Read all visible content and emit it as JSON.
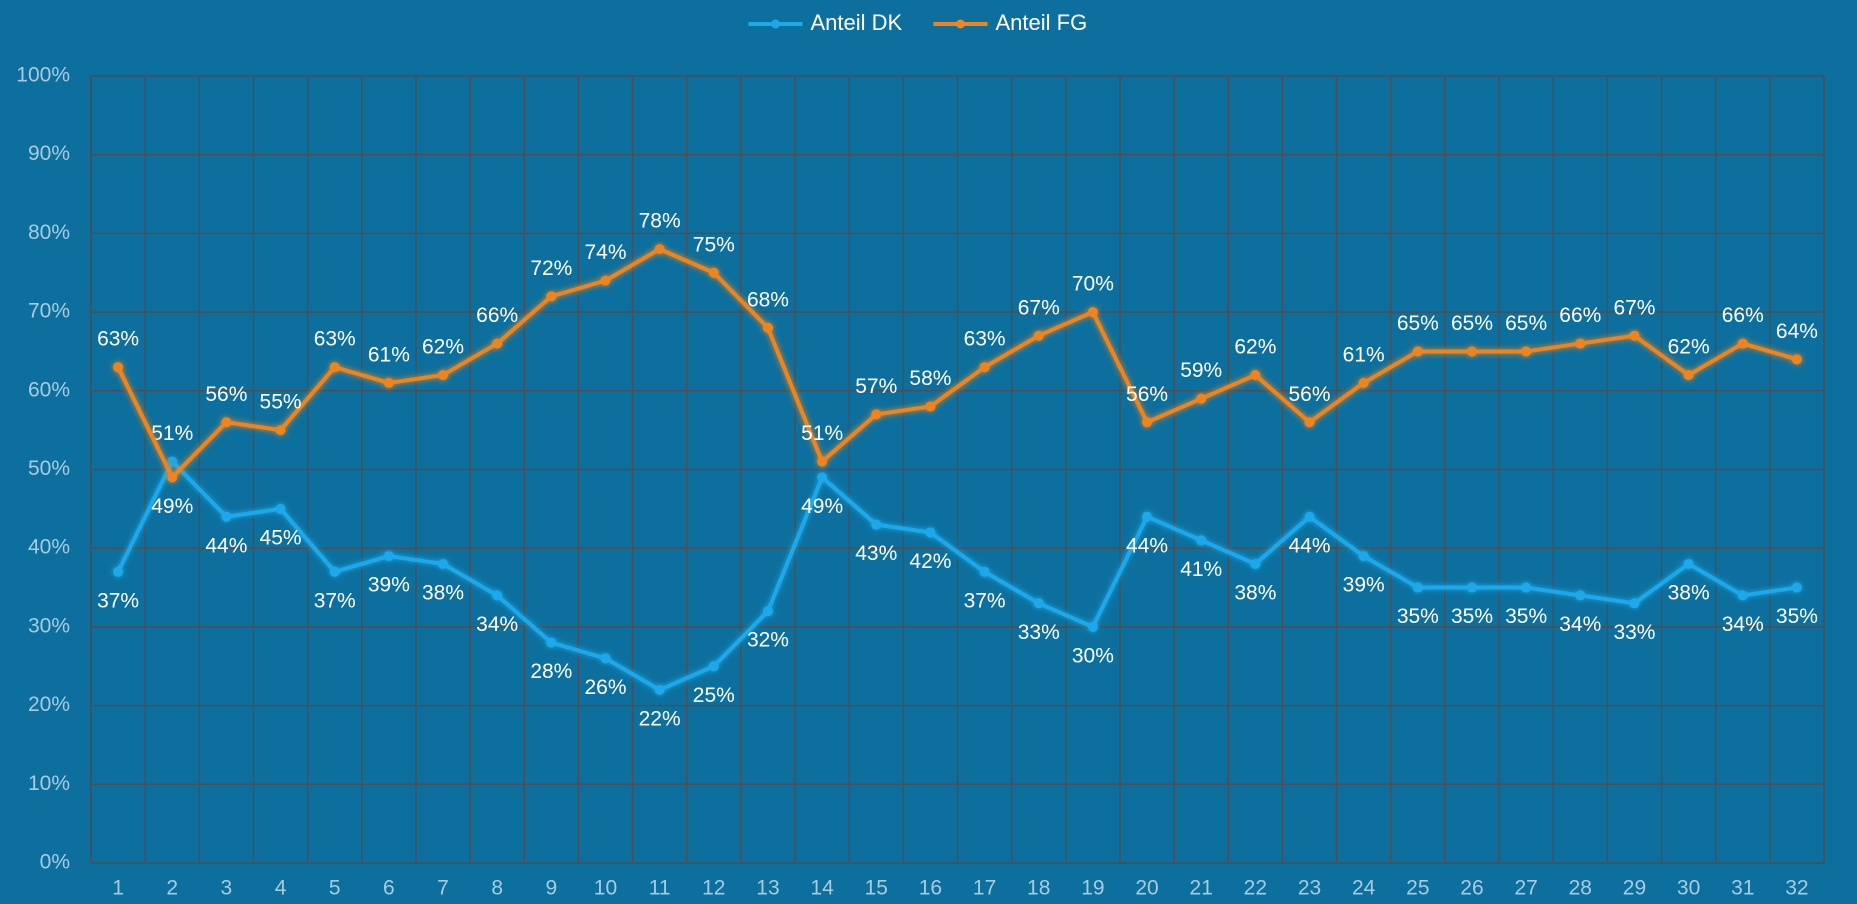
{
  "chart_data": {
    "type": "line",
    "categories": [
      "1",
      "2",
      "3",
      "4",
      "5",
      "6",
      "7",
      "8",
      "9",
      "10",
      "11",
      "12",
      "13",
      "14",
      "15",
      "16",
      "17",
      "18",
      "19",
      "20",
      "21",
      "22",
      "23",
      "24",
      "25",
      "26",
      "27",
      "28",
      "29",
      "30",
      "31",
      "32"
    ],
    "series": [
      {
        "name": "Anteil DK",
        "color": "#1ea8ea",
        "values": [
          37,
          51,
          44,
          45,
          37,
          39,
          38,
          34,
          28,
          26,
          22,
          25,
          32,
          49,
          43,
          42,
          37,
          33,
          30,
          44,
          41,
          38,
          44,
          39,
          35,
          35,
          35,
          34,
          33,
          38,
          34,
          35
        ],
        "value_labels": [
          "37%",
          "51%",
          "44%",
          "45%",
          "37%",
          "39%",
          "38%",
          "34%",
          "28%",
          "26%",
          "22%",
          "25%",
          "32%",
          "49%",
          "43%",
          "42%",
          "37%",
          "33%",
          "30%",
          "44%",
          "41%",
          "38%",
          "44%",
          "39%",
          "35%",
          "35%",
          "35%",
          "34%",
          "33%",
          "38%",
          "34%",
          "35%"
        ]
      },
      {
        "name": "Anteil FG",
        "color": "#f0841e",
        "values": [
          63,
          49,
          56,
          55,
          63,
          61,
          62,
          66,
          72,
          74,
          78,
          75,
          68,
          51,
          57,
          58,
          63,
          67,
          70,
          56,
          59,
          62,
          56,
          61,
          65,
          65,
          65,
          66,
          67,
          62,
          66,
          64
        ],
        "value_labels": [
          "63%",
          "49%",
          "56%",
          "55%",
          "63%",
          "61%",
          "62%",
          "66%",
          "72%",
          "74%",
          "78%",
          "75%",
          "68%",
          "51%",
          "57%",
          "58%",
          "63%",
          "67%",
          "70%",
          "56%",
          "59%",
          "62%",
          "56%",
          "61%",
          "65%",
          "65%",
          "65%",
          "66%",
          "67%",
          "62%",
          "66%",
          "64%"
        ]
      }
    ],
    "ylim": [
      0,
      100
    ],
    "yticks": [
      {
        "value": 0,
        "label": "0%"
      },
      {
        "value": 10,
        "label": "10%"
      },
      {
        "value": 20,
        "label": "20%"
      },
      {
        "value": 30,
        "label": "30%"
      },
      {
        "value": 40,
        "label": "40%"
      },
      {
        "value": 50,
        "label": "50%"
      },
      {
        "value": 60,
        "label": "60%"
      },
      {
        "value": 70,
        "label": "70%"
      },
      {
        "value": 80,
        "label": "80%"
      },
      {
        "value": 90,
        "label": "90%"
      },
      {
        "value": 100,
        "label": "100%"
      }
    ],
    "grid": true,
    "legend": "top"
  }
}
